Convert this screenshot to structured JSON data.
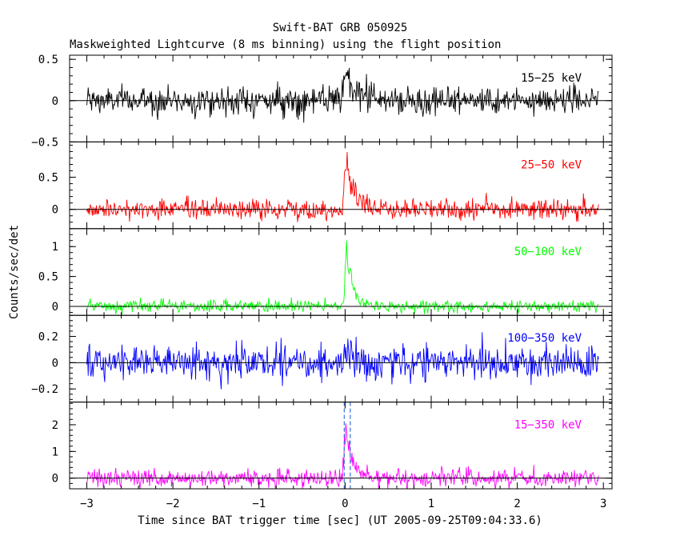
{
  "header": {
    "title": "Swift-BAT GRB 050925",
    "subtitle": "Maskweighted Lightcurve (8 ms binning) using the flight position"
  },
  "axes": {
    "xlabel": "Time since BAT trigger time [sec] (UT 2005-09-25T09:04:33.6)",
    "ylabel": "Counts/sec/det"
  },
  "chart_data": {
    "type": "line",
    "title": "Swift-BAT GRB 050925",
    "subtitle": "Maskweighted Lightcurve (8 ms binning) using the flight position",
    "xlabel": "Time since BAT trigger time [sec] (UT 2005-09-25T09:04:33.6)",
    "ylabel": "Counts/sec/det",
    "xlim": [
      -3.2,
      3.1
    ],
    "x_ticks": [
      -3,
      -2,
      -1,
      0,
      1,
      2,
      3
    ],
    "x_tick_labels": [
      "−3",
      "−2",
      "−1",
      "0",
      "1",
      "2",
      "3"
    ],
    "bin_width_sec": 0.008,
    "data_range": [
      -3.0,
      2.95
    ],
    "vertical_markers": [
      -0.01,
      0.06
    ],
    "marker_color": "#3a6fd8",
    "panels": [
      {
        "name": "15−25 keV",
        "color": "#000000",
        "ylim": [
          -0.5,
          0.55
        ],
        "y_ticks": [
          -0.5,
          0,
          0.5
        ],
        "y_tick_labels": [
          "−0.5",
          "0",
          "0.5"
        ],
        "baseline": 0.0,
        "noise_sd": 0.085,
        "peak": {
          "t": 0.0,
          "amp": 0.35,
          "rise": 0.03,
          "decay": 0.13
        }
      },
      {
        "name": "25−50 keV",
        "color": "#ff0000",
        "ylim": [
          -0.3,
          1.05
        ],
        "y_ticks": [
          0,
          0.5
        ],
        "y_tick_labels": [
          "0",
          "0.5"
        ],
        "baseline": 0.0,
        "noise_sd": 0.08,
        "peak": {
          "t": 0.01,
          "amp": 0.75,
          "rise": 0.025,
          "decay": 0.09
        }
      },
      {
        "name": "50−100 keV",
        "color": "#00ff00",
        "ylim": [
          -0.15,
          1.3
        ],
        "y_ticks": [
          0,
          0.5,
          1
        ],
        "y_tick_labels": [
          "0",
          "0.5",
          "1"
        ],
        "baseline": 0.0,
        "noise_sd": 0.05,
        "peak": {
          "t": 0.015,
          "amp": 0.95,
          "rise": 0.02,
          "decay": 0.07
        }
      },
      {
        "name": "100−350 keV",
        "color": "#0000ff",
        "ylim": [
          -0.3,
          0.36
        ],
        "y_ticks": [
          -0.2,
          0,
          0.2
        ],
        "y_tick_labels": [
          "−0.2",
          "0",
          "0.2"
        ],
        "baseline": 0.0,
        "noise_sd": 0.065,
        "peak": {
          "t": 0.01,
          "amp": 0.12,
          "rise": 0.02,
          "decay": 0.05
        }
      },
      {
        "name": "15−350 keV",
        "color": "#ff00ff",
        "ylim": [
          -0.4,
          2.85
        ],
        "y_ticks": [
          0,
          1,
          2
        ],
        "y_tick_labels": [
          "0",
          "1",
          "2"
        ],
        "baseline": 0.0,
        "noise_sd": 0.17,
        "peak": {
          "t": 0.01,
          "amp": 1.8,
          "rise": 0.025,
          "decay": 0.08
        }
      }
    ]
  }
}
